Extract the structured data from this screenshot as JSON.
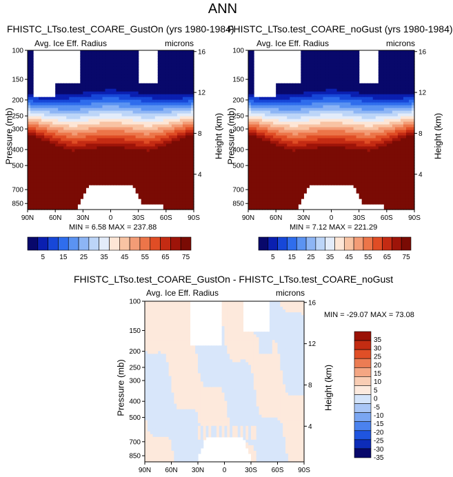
{
  "main_title": "ANN",
  "panels": [
    {
      "title": "FHISTC_LTso.test_COARE_GustOn (yrs 1980-1984)",
      "field_label": "Avg. Ice Eff. Radius",
      "units": "microns",
      "ylabel": "Pressure (mb)",
      "ylabel_right": "Height (km)",
      "stats": "MIN =   6.58  MAX = 237.88"
    },
    {
      "title": "FHISTC_LTso.test_COARE_noGust (yrs 1980-1984)",
      "field_label": "Avg. Ice Eff. Radius",
      "units": "microns",
      "ylabel": "Pressure (mb)",
      "ylabel_right": "Height (km)",
      "stats": "MIN =   7.12  MAX = 221.29"
    },
    {
      "title": "FHISTC_LTso.test_COARE_GustOn - FHISTC_LTso.test_COARE_noGust",
      "field_label": "Avg. Ice Eff. Radius",
      "units": "microns",
      "ylabel": "Pressure (mb)",
      "ylabel_right": "Height (km)",
      "stats": "MIN = -29.07  MAX =  73.08"
    }
  ],
  "colors": {
    "abs_scale": [
      "#08086b",
      "#0a1fb0",
      "#1747d8",
      "#2f6ded",
      "#5b93f2",
      "#8db5f5",
      "#bcd5f8",
      "#e3ecfa",
      "#fde6d6",
      "#f8c3a3",
      "#f39c76",
      "#ec7549",
      "#e04d25",
      "#c42b13",
      "#9e1409",
      "#7a0b04"
    ],
    "diff_scale": [
      "#08086b",
      "#0d2cb8",
      "#1f55e0",
      "#4b82ee",
      "#7aa6f2",
      "#a9c6f6",
      "#d4e4fa",
      "#fdeade",
      "#f9cdb4",
      "#f4a683",
      "#ec7c53",
      "#e04f27",
      "#c32c12",
      "#9a1206"
    ]
  },
  "chart_data": [
    {
      "type": "heatmap",
      "title": "FHISTC_LTso.test_COARE_GustOn (yrs 1980-1984)",
      "xlabel": "",
      "ylabel": "Pressure (mb)",
      "y2label": "Height (km)",
      "x_ticks": [
        "90N",
        "60N",
        "30N",
        "0",
        "30S",
        "60S",
        "90S"
      ],
      "y_ticks": [
        100,
        150,
        200,
        250,
        300,
        400,
        500,
        700,
        850
      ],
      "y2_ticks": [
        16,
        12,
        8,
        4
      ],
      "ylim": [
        100,
        925
      ],
      "y_scale": "log",
      "colorbar_labels": [
        5,
        15,
        25,
        35,
        45,
        55,
        65,
        75
      ],
      "min": 6.58,
      "max": 237.88
    },
    {
      "type": "heatmap",
      "title": "FHISTC_LTso.test_COARE_noGust (yrs 1980-1984)",
      "xlabel": "",
      "ylabel": "Pressure (mb)",
      "y2label": "Height (km)",
      "x_ticks": [
        "90N",
        "60N",
        "30N",
        "0",
        "30S",
        "60S",
        "90S"
      ],
      "y_ticks": [
        100,
        150,
        200,
        250,
        300,
        400,
        500,
        700,
        850
      ],
      "y2_ticks": [
        16,
        12,
        8,
        4
      ],
      "ylim": [
        100,
        925
      ],
      "y_scale": "log",
      "colorbar_labels": [
        5,
        15,
        25,
        35,
        45,
        55,
        65,
        75
      ],
      "min": 7.12,
      "max": 221.29
    },
    {
      "type": "heatmap",
      "title": "FHISTC_LTso.test_COARE_GustOn - FHISTC_LTso.test_COARE_noGust",
      "xlabel": "",
      "ylabel": "Pressure (mb)",
      "y2label": "Height (km)",
      "x_ticks": [
        "90N",
        "60N",
        "30N",
        "0",
        "30S",
        "60S",
        "90S"
      ],
      "y_ticks": [
        100,
        150,
        200,
        250,
        300,
        400,
        500,
        700,
        850
      ],
      "y2_ticks": [
        16,
        12,
        8,
        4
      ],
      "ylim": [
        100,
        925
      ],
      "y_scale": "log",
      "colorbar_labels": [
        35,
        30,
        25,
        20,
        15,
        10,
        5,
        0,
        -5,
        -10,
        -15,
        -20,
        -25,
        -30,
        -35
      ],
      "min": -29.07,
      "max": 73.08
    }
  ]
}
